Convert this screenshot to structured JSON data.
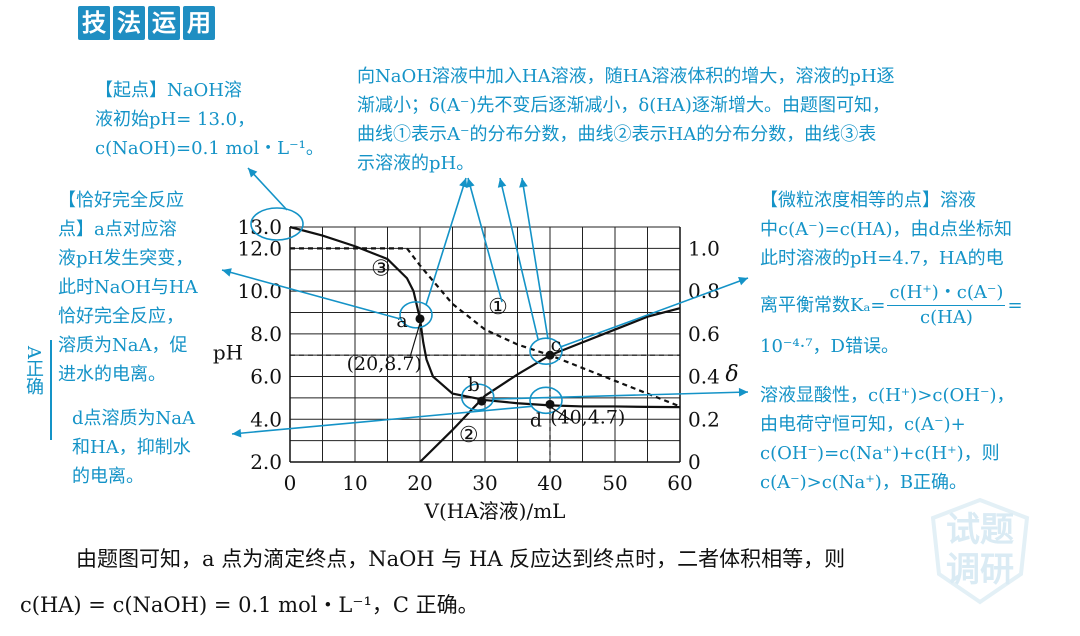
{
  "badge": {
    "chars": [
      "技",
      "法",
      "运",
      "用"
    ]
  },
  "notes": {
    "start": {
      "title": "【起点】",
      "line1_a": "NaOH溶",
      "line2": "液初始pH= 13.0，",
      "line3": "c(NaOH)=0.1 mol・L⁻¹。"
    },
    "top": {
      "line1": "向NaOH溶液中加入HA溶液，随HA溶液体积的增大，溶液的pH逐",
      "line2": "渐减小；δ(A⁻)先不变后逐渐减小，δ(HA)逐渐增大。由题图可知，",
      "line3": "曲线①表示A⁻的分布分数，曲线②表示HA的分布分数，曲线③表",
      "line4": "示溶液的pH。"
    },
    "equiv": {
      "line1": "【恰好完全反应",
      "line2": "点】a点对应溶",
      "line3": "液pH发生突变，",
      "line4": "此时NaOH与HA",
      "line5": "恰好完全反应，",
      "line6": "溶质为NaA，促",
      "line7": "进水的电离。"
    },
    "side_a": {
      "text": "A正确"
    },
    "d_point": {
      "line1": "d点溶质为NaA",
      "line2": "和HA，抑制水",
      "line3": "的电离。"
    },
    "equal": {
      "line1": "【微粒浓度相等的点】溶液",
      "line2": "中c(A⁻)=c(HA)，由d点坐标知",
      "line3": "此时溶液的pH=4.7，HA的电",
      "line4_pre": "离平衡常数Kₐ=",
      "frac_num": "c(H⁺)・c(A⁻)",
      "frac_den": "c(HA)",
      "frac_eq": "=",
      "line5": "10⁻⁴·⁷，D错误。"
    },
    "acid": {
      "line1": "溶液显酸性，c(H⁺)>c(OH⁻)，",
      "line2": "由电荷守恒可知，c(A⁻)+",
      "line3": "c(OH⁻)=c(Na⁺)+c(H⁺)，则",
      "line4": "c(A⁻)>c(Na⁺)，B正确。"
    }
  },
  "bottom": {
    "line1": "由题图可知，a 点为滴定终点，NaOH 与 HA 反应达到终点时，二者体积相等，则",
    "line2": "c(HA) = c(NaOH) = 0.1 mol・L⁻¹，C 正确。"
  },
  "watermark": {
    "line1": "试题",
    "line2": "调研"
  },
  "colors": {
    "accent": "#1493c7",
    "badge": "#1f8ec2",
    "curve": "#111111"
  },
  "chart_data": {
    "type": "line",
    "xlabel": "V(HA溶液)/mL",
    "ylabel_left": "pH",
    "ylabel_right": "δ",
    "xlim": [
      0,
      60
    ],
    "ylim_left": [
      2.0,
      13.0
    ],
    "ylim_right": [
      0,
      1.0
    ],
    "x_ticks": [
      "0",
      "10",
      "20",
      "30",
      "40",
      "50",
      "60"
    ],
    "y_left_ticks": [
      "2.0",
      "4.0",
      "6.0",
      "8.0",
      "10.0",
      "12.0",
      "13.0"
    ],
    "y_right_ticks": [
      "0",
      "0.2",
      "0.4",
      "0.6",
      "0.8",
      "1.0"
    ],
    "grid": true,
    "series": [
      {
        "name": "①",
        "axis": "right",
        "style": "dashed",
        "x": [
          0,
          18,
          20,
          25,
          30,
          35,
          40,
          45,
          50,
          55,
          60
        ],
        "y": [
          1.0,
          1.0,
          0.92,
          0.74,
          0.62,
          0.55,
          0.5,
          0.44,
          0.38,
          0.32,
          0.26
        ]
      },
      {
        "name": "②",
        "axis": "right",
        "style": "solid",
        "x": [
          20,
          25,
          30,
          35,
          40,
          45,
          50,
          55,
          60
        ],
        "y": [
          0.0,
          0.15,
          0.31,
          0.41,
          0.5,
          0.56,
          0.62,
          0.68,
          0.72
        ]
      },
      {
        "name": "③",
        "axis": "left",
        "style": "solid",
        "x": [
          0,
          5,
          10,
          15,
          18,
          19,
          20,
          20.5,
          21,
          22,
          25,
          30,
          35,
          40,
          45,
          50,
          55,
          60
        ],
        "y": [
          13.0,
          12.6,
          12.1,
          11.5,
          10.6,
          10.0,
          8.7,
          7.6,
          6.8,
          6.0,
          5.2,
          4.9,
          4.75,
          4.65,
          4.6,
          4.6,
          4.58,
          4.57
        ]
      }
    ],
    "points": [
      {
        "label": "a",
        "x": 20,
        "y": 8.7,
        "axis": "left"
      },
      {
        "label": "b",
        "x": 29.5,
        "y": 4.85,
        "axis": "left"
      },
      {
        "label": "c",
        "x": 40,
        "y": 0.5,
        "axis": "right"
      },
      {
        "label": "d",
        "x": 40,
        "y": 4.7,
        "axis": "left"
      }
    ],
    "annotations": [
      "(20,8.7)",
      "(40,4.7)"
    ],
    "curve_labels": [
      "①",
      "②",
      "③"
    ]
  }
}
